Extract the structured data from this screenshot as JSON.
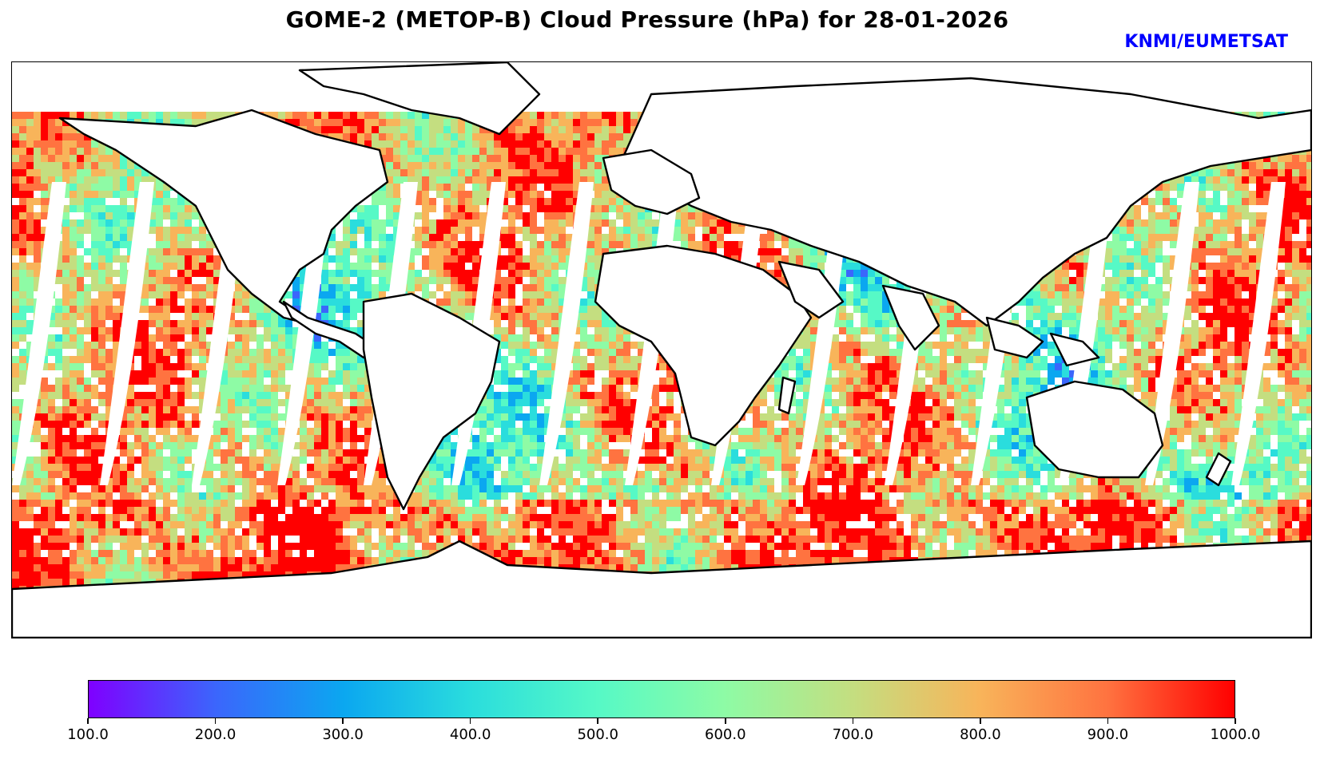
{
  "title": "GOME-2 (METOP-B) Cloud Pressure (hPa) for 28-01-2026",
  "credit": "KNMI/EUMETSAT",
  "map": {
    "projection": "plate-carree",
    "lon_range": [
      -180,
      180
    ],
    "lat_range": [
      -90,
      90
    ],
    "variable": "Cloud Pressure (hPa)",
    "coastline_color": "#000000",
    "no_data_color": "#ffffff"
  },
  "colorbar": {
    "cmap": "rainbow",
    "min": 100.0,
    "max": 1000.0,
    "colors": [
      "#7f00ff",
      "#3b66fc",
      "#0ba7f0",
      "#2adddd",
      "#56f9c6",
      "#8efba5",
      "#c4de80",
      "#f8b45a",
      "#ff7340",
      "#ff0000"
    ],
    "tick_labels": [
      "100.0",
      "200.0",
      "300.0",
      "400.0",
      "500.0",
      "600.0",
      "700.0",
      "800.0",
      "900.0",
      "1000.0"
    ]
  }
}
